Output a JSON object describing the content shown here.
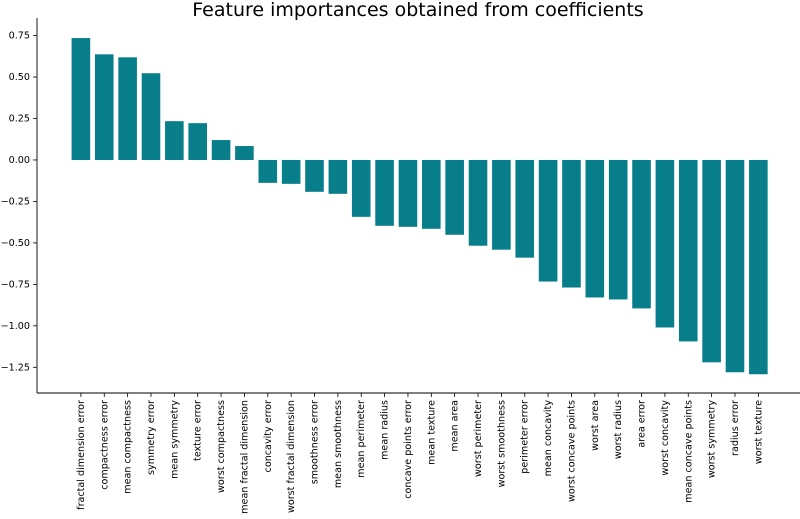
{
  "chart_data": {
    "type": "bar",
    "title": "Feature importances obtained from coefficients",
    "xlabel": "",
    "ylabel": "",
    "ylim": [
      -1.405,
      0.856
    ],
    "yticks": [
      0.75,
      0.5,
      0.25,
      0.0,
      -0.25,
      -0.5,
      -0.75,
      -1.0,
      -1.25
    ],
    "ytick_labels": [
      "0.75",
      "0.50",
      "0.25",
      "0.00",
      "−0.25",
      "−0.50",
      "−0.75",
      "−1.00",
      "−1.25"
    ],
    "grid": false,
    "bar_color": "#087e8b",
    "categories": [
      "fractal dimension error",
      "compactness error",
      "mean compactness",
      "symmetry error",
      "mean symmetry",
      "texture error",
      "worst compactness",
      "mean fractal dimension",
      "concavity error",
      "worst fractal dimension",
      "smoothness error",
      "mean smoothness",
      "mean perimeter",
      "mean radius",
      "concave points error",
      "mean texture",
      "mean area",
      "worst perimeter",
      "worst smoothness",
      "perimeter error",
      "mean concavity",
      "worst concave points",
      "worst area",
      "worst radius",
      "area error",
      "worst concavity",
      "mean concave points",
      "worst symmetry",
      "radius error",
      "worst texture"
    ],
    "values": [
      0.735,
      0.637,
      0.619,
      0.523,
      0.234,
      0.222,
      0.12,
      0.084,
      -0.138,
      -0.144,
      -0.192,
      -0.204,
      -0.343,
      -0.397,
      -0.403,
      -0.415,
      -0.451,
      -0.517,
      -0.541,
      -0.589,
      -0.733,
      -0.769,
      -0.829,
      -0.841,
      -0.895,
      -1.01,
      -1.094,
      -1.22,
      -1.28,
      -1.292
    ]
  }
}
